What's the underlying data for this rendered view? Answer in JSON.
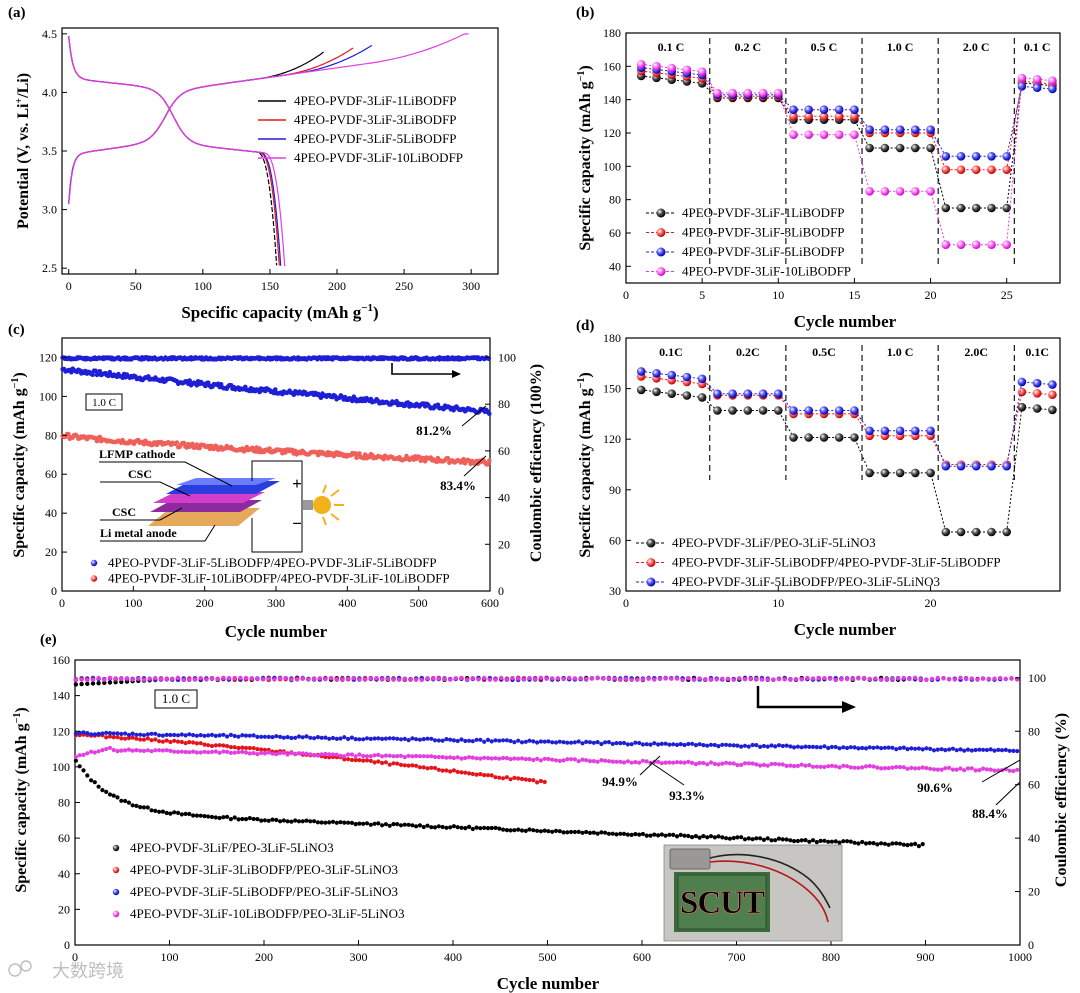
{
  "figure": {
    "watermark": "大数跨境"
  },
  "chart_data": [
    {
      "panel": "(a)",
      "type": "line",
      "xlabel": "Specific capacity (mAh g−1)",
      "ylabel": "Potential (V, vs. Li+/Li)",
      "xlim": [
        -5,
        320
      ],
      "ylim": [
        2.45,
        4.55
      ],
      "xticks": [
        "0",
        "50",
        "100",
        "150",
        "200",
        "250",
        "300"
      ],
      "yticks": [
        "2.5",
        "3.0",
        "3.5",
        "4.0",
        "4.5"
      ],
      "legend": "center-right",
      "series": [
        {
          "name": "4PEO-PVDF-3LiF-1LiBODFP",
          "color": "#000000",
          "charge_end": 190,
          "discharge_end": 155
        },
        {
          "name": "4PEO-PVDF-3LiF-3LiBODFP",
          "color": "#e8141b",
          "charge_end": 212,
          "discharge_end": 157
        },
        {
          "name": "4PEO-PVDF-3LiF-5LiBODFP",
          "color": "#1f1fd6",
          "charge_end": 226,
          "discharge_end": 158
        },
        {
          "name": "4PEO-PVDF-3LiF-10LiBODFP",
          "color": "#e33ee0",
          "charge_end": 298,
          "discharge_end": 161
        }
      ]
    },
    {
      "panel": "(b)",
      "type": "scatter",
      "xlabel": "Cycle number",
      "ylabel": "Specific capacity (mAh g−1)",
      "xlim": [
        0,
        28.5
      ],
      "ylim": [
        30,
        180
      ],
      "xticks": [
        "0",
        "5",
        "10",
        "15",
        "20",
        "25"
      ],
      "yticks": [
        "40",
        "60",
        "80",
        "100",
        "120",
        "140",
        "160",
        "180"
      ],
      "rates": [
        "0.1 C",
        "0.2 C",
        "0.5 C",
        "1.0 C",
        "2.0 C",
        "0.1 C"
      ],
      "legend": "bottom-left",
      "series": [
        {
          "name": "4PEO-PVDF-3LiF-1LiBODFP",
          "color": "#000000",
          "levels": [
            152,
            141,
            128,
            111,
            75,
            150
          ]
        },
        {
          "name": "4PEO-PVDF-3LiF-3LiBODFP",
          "color": "#e8141b",
          "levels": [
            155,
            142,
            130,
            120,
            98,
            151
          ]
        },
        {
          "name": "4PEO-PVDF-3LiF-5LiBODFP",
          "color": "#1f1fd6",
          "levels": [
            157,
            143,
            134,
            122,
            106,
            148
          ]
        },
        {
          "name": "4PEO-PVDF-3LiF-10LiBODFP",
          "color": "#e33ee0",
          "levels": [
            159,
            144,
            119,
            85,
            53,
            153
          ]
        }
      ]
    },
    {
      "panel": "(c)",
      "type": "scatter",
      "xlabel": "Cycle number",
      "ylabel": "Specific capacity (mAh g−1)",
      "ylabel_right": "Coulombic efficiency (100%)",
      "xlim": [
        0,
        600
      ],
      "ylim": [
        0,
        130
      ],
      "ylim_right": [
        0,
        108.33
      ],
      "xticks": [
        "0",
        "100",
        "200",
        "300",
        "400",
        "500",
        "600"
      ],
      "yticks": [
        "0",
        "20",
        "40",
        "60",
        "80",
        "100",
        "120"
      ],
      "yticks_right": [
        "0",
        "20",
        "40",
        "60",
        "80",
        "100"
      ],
      "rate_label": "1.0 C",
      "annotations": [
        "81.2%",
        "83.4%"
      ],
      "inset_labels": [
        "LFMP cathode",
        "CSC",
        "CSC",
        "Li metal anode",
        "+",
        "−"
      ],
      "legend": "bottom-left",
      "series": [
        {
          "name": "4PEO-PVDF-3LiF-5LiBODFP/4PEO-PVDF-3LiF-5LiBODFP",
          "color": "#1f1fd6",
          "start": 114,
          "end": 92,
          "efficiency": 99.6
        },
        {
          "name": "4PEO-PVDF-3LiF-10LiBODFP/4PEO-PVDF-3LiF-10LiBODFP",
          "color": "#f0605a",
          "start": 80,
          "end": 66,
          "efficiency": 99.6
        }
      ]
    },
    {
      "panel": "(d)",
      "type": "scatter",
      "xlabel": "Cycle number",
      "ylabel": "Specific capacity (mAh g−1)",
      "xlim": [
        0,
        28.5
      ],
      "ylim": [
        30,
        180
      ],
      "xticks": [
        "0",
        "10",
        "20"
      ],
      "yticks": [
        "30",
        "60",
        "90",
        "120",
        "150",
        "180"
      ],
      "rates": [
        "0.1C",
        "0.2C",
        "0.5C",
        "1.0 C",
        "2.0C",
        "0.1C"
      ],
      "legend": "bottom-left",
      "series": [
        {
          "name": "4PEO-PVDF-3LiF/PEO-3LiF-5LiNO3",
          "color": "#000000",
          "levels": [
            147,
            137,
            121,
            100,
            65,
            139
          ]
        },
        {
          "name": "4PEO-PVDF-3LiF-5LiBODFP/4PEO-PVDF-3LiF-5LiBODFP",
          "color": "#e8141b",
          "levels": [
            155,
            146,
            135,
            122,
            105,
            148
          ]
        },
        {
          "name": "4PEO-PVDF-3LiF-5LiBODFP/PEO-3LiF-5LiNO3",
          "color": "#1f1fd6",
          "levels": [
            158,
            147,
            137,
            125,
            104,
            154
          ]
        }
      ]
    },
    {
      "panel": "(e)",
      "type": "scatter",
      "xlabel": "Cycle number",
      "ylabel": "Specific capacity (mAh g−1)",
      "ylabel_right": "Coulombic efficiency (%)",
      "xlim": [
        0,
        1000
      ],
      "ylim": [
        0,
        160
      ],
      "ylim_right": [
        0,
        106.67
      ],
      "xticks": [
        "0",
        "100",
        "200",
        "300",
        "400",
        "500",
        "600",
        "700",
        "800",
        "900",
        "1000"
      ],
      "yticks": [
        "0",
        "20",
        "40",
        "60",
        "80",
        "100",
        "120",
        "140",
        "160"
      ],
      "yticks_right": [
        "0",
        "20",
        "40",
        "60",
        "80",
        "100"
      ],
      "rate_label": "1.0 C",
      "annotations": [
        "94.9%",
        "93.3%",
        "90.6%",
        "88.4%"
      ],
      "photo_text": "SCUT",
      "legend": "bottom-left",
      "series": [
        {
          "name": "4PEO-PVDF-3LiF/PEO-3LiF-5LiNO3",
          "color": "#000000",
          "cycles": 900,
          "start": 104,
          "end": 56
        },
        {
          "name": "4PEO-PVDF-3LiF-3LiBODFP/PEO-3LiF-5LiNO3",
          "color": "#e8141b",
          "cycles": 500,
          "start": 118,
          "end": 91
        },
        {
          "name": "4PEO-PVDF-3LiF-5LiBODFP/PEO-3LiF-5LiNO3",
          "color": "#1f1fd6",
          "cycles": 1000,
          "start": 119,
          "end": 109
        },
        {
          "name": "4PEO-PVDF-3LiF-10LiBODFP/PEO-3LiF-5LiNO3",
          "color": "#e33ee0",
          "cycles": 1000,
          "start": 110,
          "end": 98
        }
      ]
    }
  ]
}
